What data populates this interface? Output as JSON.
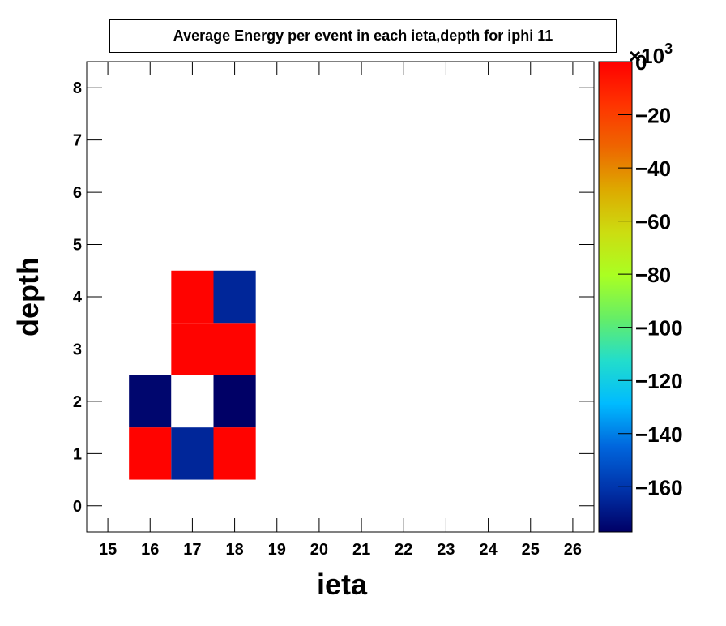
{
  "chart_data": {
    "type": "heatmap",
    "title": "Average Energy per event in each ieta,depth for iphi 11",
    "xlabel": "ieta",
    "ylabel": "depth",
    "x_categories": [
      "15",
      "16",
      "17",
      "18",
      "19",
      "20",
      "21",
      "22",
      "23",
      "24",
      "25",
      "26"
    ],
    "y_categories": [
      "0",
      "1",
      "2",
      "3",
      "4",
      "5",
      "6",
      "7",
      "8"
    ],
    "xlim": [
      14.5,
      26.5
    ],
    "ylim": [
      -0.5,
      8.5
    ],
    "cells": [
      {
        "ieta": 16,
        "depth": 1,
        "value": -1000
      },
      {
        "ieta": 17,
        "depth": 1,
        "value": -165000
      },
      {
        "ieta": 18,
        "depth": 1,
        "value": -1000
      },
      {
        "ieta": 16,
        "depth": 2,
        "value": -175000
      },
      {
        "ieta": 17,
        "depth": 2,
        "value": 0
      },
      {
        "ieta": 18,
        "depth": 2,
        "value": -177000
      },
      {
        "ieta": 17,
        "depth": 3,
        "value": -1000
      },
      {
        "ieta": 18,
        "depth": 3,
        "value": -1000
      },
      {
        "ieta": 17,
        "depth": 4,
        "value": -1000
      },
      {
        "ieta": 18,
        "depth": 4,
        "value": -165000
      }
    ],
    "colorbar": {
      "range": [
        -177000,
        0
      ],
      "ticks": [
        "0",
        "−20",
        "−40",
        "−60",
        "−80",
        "−100",
        "−120",
        "−140",
        "−160"
      ],
      "tick_values": [
        0,
        -20,
        -40,
        -60,
        -80,
        -100,
        -120,
        -140,
        -160
      ],
      "exponent_label": "×10",
      "exponent_power": "3",
      "palette": [
        "#000066",
        "#0033aa",
        "#0066dd",
        "#00bbff",
        "#22ddcc",
        "#66ee66",
        "#aaff22",
        "#ccdd11",
        "#ddaa00",
        "#ee6600",
        "#ff3300",
        "#ff0000"
      ]
    },
    "grid": false
  }
}
